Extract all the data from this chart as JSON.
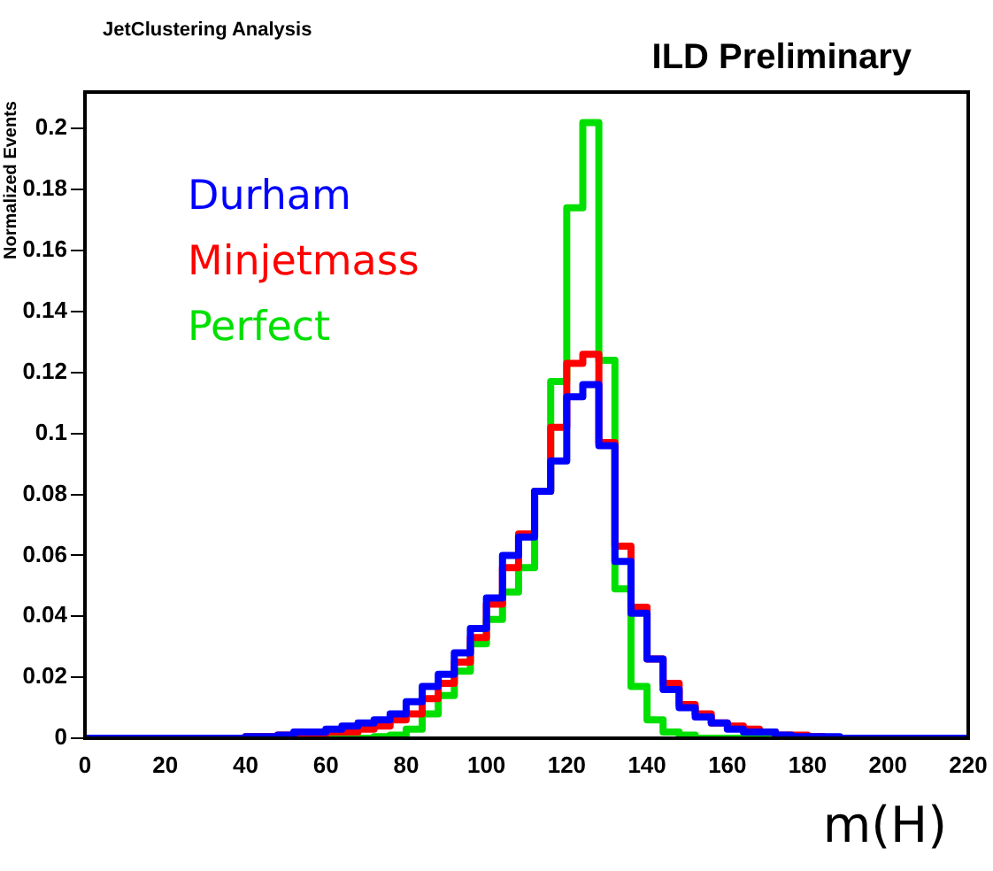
{
  "chart_data": {
    "type": "histogram",
    "title": "JetClustering Analysis",
    "xlabel": "m(H)",
    "ylabel": "Normalized Events",
    "annotations": [
      "ILD Preliminary"
    ],
    "bins": [
      0,
      4,
      8,
      12,
      16,
      20,
      24,
      28,
      32,
      36,
      40,
      44,
      48,
      52,
      56,
      60,
      64,
      68,
      72,
      76,
      80,
      84,
      88,
      92,
      96,
      100,
      104,
      108,
      112,
      116,
      120,
      124,
      128,
      132,
      136,
      140,
      144,
      148,
      152,
      156,
      160,
      164,
      168,
      172,
      176,
      180,
      184,
      188,
      192,
      196,
      200,
      204,
      208,
      212,
      216,
      220
    ],
    "series": [
      {
        "name": "Durham",
        "color": "#0000ff",
        "values": [
          0,
          0,
          0,
          0,
          0,
          0,
          0,
          0,
          0,
          0,
          0.0005,
          0.0005,
          0.001,
          0.002,
          0.002,
          0.003,
          0.004,
          0.005,
          0.006,
          0.008,
          0.012,
          0.017,
          0.021,
          0.028,
          0.036,
          0.046,
          0.06,
          0.066,
          0.081,
          0.091,
          0.112,
          0.116,
          0.096,
          0.058,
          0.041,
          0.026,
          0.016,
          0.01,
          0.007,
          0.005,
          0.003,
          0.002,
          0.002,
          0.001,
          0.0005,
          0.0005,
          0.0005,
          0,
          0,
          0,
          0,
          0,
          0,
          0,
          0
        ]
      },
      {
        "name": "Minjetmass",
        "color": "#ff0000",
        "values": [
          0,
          0,
          0,
          0,
          0,
          0,
          0,
          0,
          0,
          0,
          0.0005,
          0.0005,
          0.001,
          0.001,
          0.001,
          0.002,
          0.002,
          0.003,
          0.004,
          0.006,
          0.008,
          0.013,
          0.018,
          0.025,
          0.033,
          0.044,
          0.056,
          0.067,
          0.081,
          0.102,
          0.123,
          0.126,
          0.097,
          0.063,
          0.043,
          0.026,
          0.018,
          0.011,
          0.008,
          0.005,
          0.004,
          0.003,
          0.002,
          0.001,
          0.001,
          0.0005,
          0,
          0,
          0,
          0,
          0,
          0,
          0,
          0,
          0
        ]
      },
      {
        "name": "Perfect",
        "color": "#00e000",
        "values": [
          0,
          0,
          0,
          0,
          0,
          0,
          0,
          0,
          0,
          0,
          0,
          0,
          0,
          0,
          0,
          0,
          0,
          0,
          0.0005,
          0.001,
          0.003,
          0.008,
          0.014,
          0.022,
          0.031,
          0.039,
          0.048,
          0.056,
          0.081,
          0.117,
          0.174,
          0.202,
          0.124,
          0.049,
          0.017,
          0.006,
          0.002,
          0.001,
          0,
          0,
          0,
          0,
          0,
          0,
          0,
          0,
          0,
          0,
          0,
          0,
          0,
          0,
          0,
          0,
          0
        ]
      }
    ],
    "xlim": [
      0,
      220
    ],
    "xticks": [
      0,
      20,
      40,
      60,
      80,
      100,
      120,
      140,
      160,
      180,
      200,
      220
    ],
    "ylim": [
      0,
      0.212
    ],
    "yticks": [
      0,
      0.02,
      0.04,
      0.06,
      0.08,
      0.1,
      0.12,
      0.14,
      0.16,
      0.18,
      0.2
    ],
    "legend": "top left",
    "grid": false
  }
}
